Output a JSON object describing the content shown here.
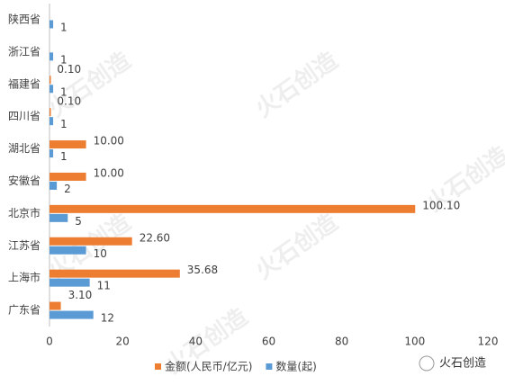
{
  "chart_data": {
    "type": "hbar",
    "categories": [
      "陕西省",
      "浙江省",
      "福建省",
      "四川省",
      "湖北省",
      "安徽省",
      "北京市",
      "江苏省",
      "上海市",
      "广东省"
    ],
    "series": [
      {
        "name": "金额(人民币/亿元)",
        "color": "#ed7d31",
        "values": [
          null,
          null,
          0.1,
          0.1,
          10,
          10,
          100.1,
          22.6,
          35.68,
          3.1
        ],
        "value_labels": [
          null,
          null,
          "0.10",
          "0.10",
          "10.00",
          "10.00",
          "100.10",
          "22.60",
          "35.68",
          "3.10"
        ]
      },
      {
        "name": "数量(起)",
        "color": "#5b9bd5",
        "values": [
          1,
          1,
          1,
          1,
          1,
          2,
          5,
          10,
          11,
          12
        ]
      }
    ],
    "xlim": [
      0,
      120
    ],
    "xticks": [
      0,
      20,
      40,
      60,
      80,
      100,
      120
    ],
    "grid": false,
    "legend": "bottom"
  },
  "watermark": "火石创造"
}
